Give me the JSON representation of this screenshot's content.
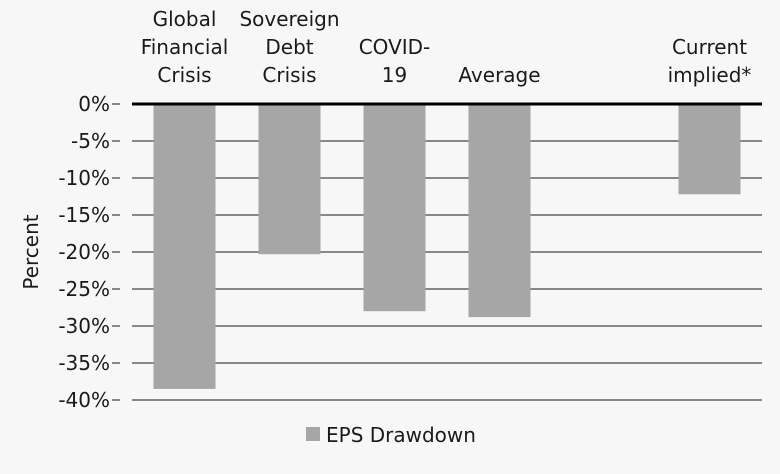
{
  "chart_data": {
    "type": "bar",
    "categories": [
      [
        "Global",
        "Financial",
        "Crisis"
      ],
      [
        "Sovereign",
        "Debt",
        "Crisis"
      ],
      [
        "COVID-",
        "19"
      ],
      [
        "Average"
      ],
      [],
      [
        "Current",
        "implied*"
      ]
    ],
    "series": [
      {
        "name": "EPS Drawdown",
        "values": [
          -38.5,
          -20.3,
          -28,
          -28.8,
          null,
          -12.2
        ],
        "color": "#a6a6a6"
      }
    ],
    "ylabel": "Percent",
    "ylim": [
      -40,
      0
    ],
    "yticks": [
      0,
      -5,
      -10,
      -15,
      -20,
      -25,
      -30,
      -35,
      -40
    ],
    "ytick_labels": [
      "0%",
      "-5%",
      "-10%",
      "-15%",
      "-20%",
      "-25%",
      "-30%",
      "-35%",
      "-40%"
    ],
    "grid": true,
    "legend": "bottom"
  }
}
